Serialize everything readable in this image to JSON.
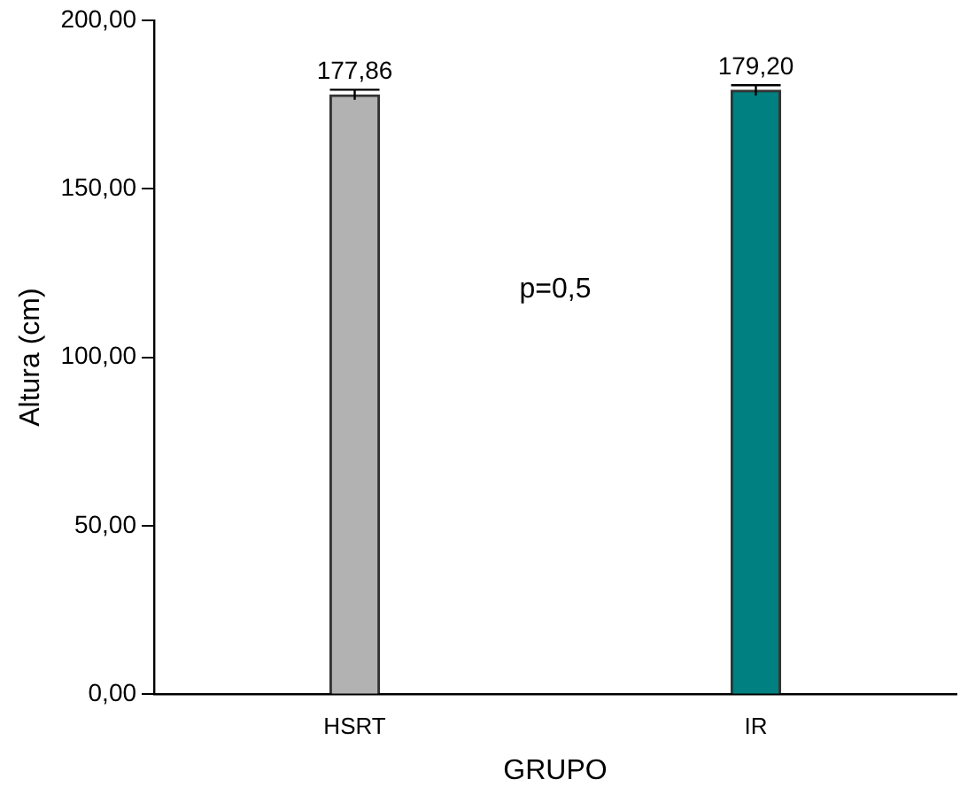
{
  "chart_data": {
    "type": "bar",
    "xlabel": "GRUPO",
    "ylabel": "Altura (cm)",
    "categories": [
      "HSRT",
      "IR"
    ],
    "values": [
      177.86,
      179.2
    ],
    "colors": [
      "#b2b2b2",
      "#008080"
    ],
    "errors": [
      1.5,
      1.5
    ],
    "value_labels": [
      "177,86",
      "179,20"
    ],
    "ylim": [
      0,
      200
    ],
    "yticks": [
      {
        "value": 0,
        "label": "0,00"
      },
      {
        "value": 50,
        "label": "50,00"
      },
      {
        "value": 100,
        "label": "100,00"
      },
      {
        "value": 150,
        "label": "150,00"
      },
      {
        "value": 200,
        "label": "200,00"
      }
    ],
    "annotations": [
      "p=0,5"
    ],
    "grid": false,
    "legend": false
  }
}
